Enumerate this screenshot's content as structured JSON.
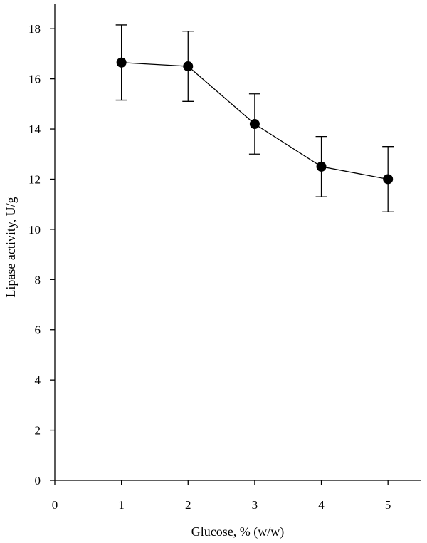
{
  "chart_data": {
    "type": "line",
    "title": "",
    "xlabel": "Glucose, % (w/w)",
    "ylabel": "Lipase activity, U/g",
    "xlim": [
      0,
      5.5
    ],
    "ylim": [
      0,
      19
    ],
    "x_ticks": [
      0,
      1,
      2,
      3,
      4,
      5
    ],
    "y_ticks": [
      0,
      2,
      4,
      6,
      8,
      10,
      12,
      14,
      16,
      18
    ],
    "x_tick_labels": [
      "0",
      "1",
      "2",
      "3",
      "4",
      "5"
    ],
    "y_tick_labels": [
      "0",
      "2",
      "4",
      "6",
      "8",
      "10",
      "12",
      "14",
      "16",
      "18"
    ],
    "grid": false,
    "legend": "none",
    "series": [
      {
        "x": [
          1,
          2,
          3,
          4,
          5
        ],
        "y": [
          16.65,
          16.5,
          14.2,
          12.5,
          12.0
        ],
        "error": [
          1.5,
          1.4,
          1.2,
          1.2,
          1.3
        ],
        "marker": "filled-circle",
        "color": "#000000"
      }
    ]
  }
}
